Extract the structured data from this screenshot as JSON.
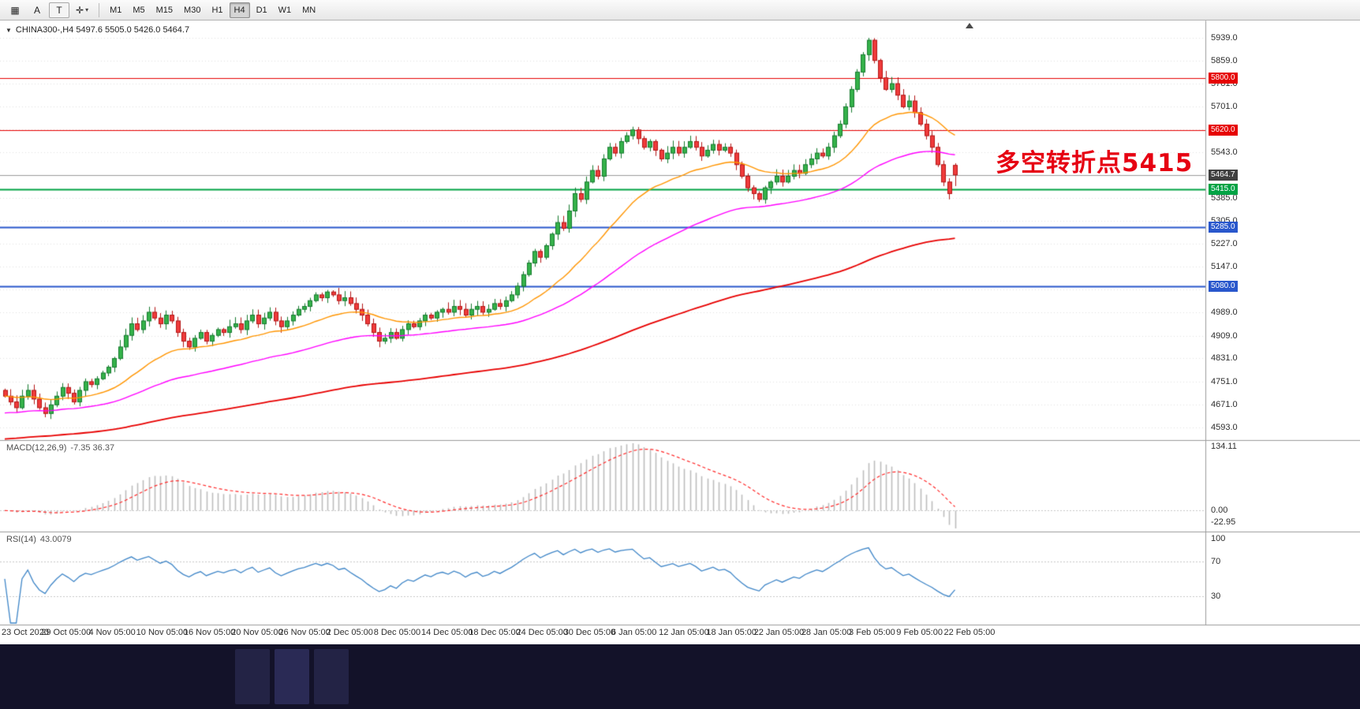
{
  "toolbar": {
    "buttons": [
      {
        "name": "chart-grid",
        "glyph": "▦"
      },
      {
        "name": "cursor",
        "glyph": "A"
      },
      {
        "name": "text",
        "glyph": "T"
      },
      {
        "name": "crosshair",
        "glyph": "✛"
      }
    ],
    "timeframes": [
      {
        "label": "M1",
        "active": false
      },
      {
        "label": "M5",
        "active": false
      },
      {
        "label": "M15",
        "active": false
      },
      {
        "label": "M30",
        "active": false
      },
      {
        "label": "H1",
        "active": false
      },
      {
        "label": "H4",
        "active": true
      },
      {
        "label": "D1",
        "active": false
      },
      {
        "label": "W1",
        "active": false
      },
      {
        "label": "MN",
        "active": false
      }
    ]
  },
  "icons": {
    "symbol_marker": "▼",
    "dropdown_caret": "▾"
  },
  "chart": {
    "header": "CHINA300-,H4 5497.6 5505.0 5426.0 5464.7",
    "symbol": "CHINA300-",
    "period": "H4",
    "ohlc": {
      "open": 5497.6,
      "high": 5505.0,
      "low": 5426.0,
      "close": 5464.7
    },
    "annotation": {
      "text": "多空转折点5415",
      "color": "#e60012"
    },
    "current_price": {
      "value": 5464.7,
      "label": "5464.7",
      "box_color": "#3f3f3f"
    },
    "levels": [
      {
        "value": 5800.0,
        "label": "5800.0",
        "color": "#e60000",
        "width": 1.2
      },
      {
        "value": 5620.0,
        "label": "5620.0",
        "color": "#e60000",
        "width": 1.2
      },
      {
        "value": 5415.0,
        "label": "5415.0",
        "color": "#00a344",
        "width": 2
      },
      {
        "value": 5285.0,
        "label": "5285.0",
        "color": "#2957cc",
        "width": 1.8
      },
      {
        "value": 5080.0,
        "label": "5080.0",
        "color": "#2957cc",
        "width": 1.8
      }
    ],
    "y_ticks_visible": [
      {
        "v": 5939,
        "label": "5939.0"
      },
      {
        "v": 5859,
        "label": "5859.0"
      },
      {
        "v": 5781,
        "label": "5781.0"
      },
      {
        "v": 5701,
        "label": "5701.0"
      },
      {
        "v": 5543,
        "label": "5543.0"
      },
      {
        "v": 5385,
        "label": "5385.0"
      },
      {
        "v": 5305,
        "label": "5305.0"
      },
      {
        "v": 5227,
        "label": "5227.0"
      },
      {
        "v": 5147,
        "label": "5147.0"
      },
      {
        "v": 4989,
        "label": "4989.0"
      },
      {
        "v": 4909,
        "label": "4909.0"
      },
      {
        "v": 4831,
        "label": "4831.0"
      },
      {
        "v": 4751,
        "label": "4751.0"
      },
      {
        "v": 4671,
        "label": "4671.0"
      },
      {
        "v": 4593,
        "label": "4593.0"
      }
    ]
  },
  "macd": {
    "title": "MACD(12,26,9)",
    "values": "-7.35 36.37",
    "axis": [
      {
        "v": 134.11,
        "label": "134.11"
      },
      {
        "v": 0,
        "label": "0.00"
      },
      {
        "v": -22.95,
        "label": "-22.95"
      }
    ]
  },
  "rsi": {
    "title": "RSI(14)",
    "value": "43.0079",
    "levels": [
      70,
      30
    ],
    "axis": [
      {
        "v": 100,
        "label": "100"
      },
      {
        "v": 70,
        "label": "70"
      },
      {
        "v": 30,
        "label": "30"
      }
    ]
  },
  "colors": {
    "up_fill": "#35b24a",
    "up_border": "#157a2e",
    "down_fill": "#ef3b3b",
    "down_border": "#b31515",
    "rsi_line": "#3f86c8",
    "macd_bar": "#bdbdbd",
    "macd_signal": "#ff2a2a",
    "grid": "#e2e2e2"
  },
  "chart_data": {
    "type": "candlestick",
    "title": "CHINA300-,H4",
    "symbol": "CHINA300-",
    "period": "H4",
    "y_range": [
      4593,
      5939
    ],
    "y_ticks": [
      5939,
      5859,
      5781,
      5701,
      5621,
      5543,
      5463,
      5385,
      5305,
      5227,
      5147,
      5069,
      4989,
      4909,
      4831,
      4751,
      4671,
      4593
    ],
    "x_labels": [
      "23 Oct 2020",
      "29 Oct 05:00",
      "4 Nov 05:00",
      "10 Nov 05:00",
      "16 Nov 05:00",
      "20 Nov 05:00",
      "26 Nov 05:00",
      "2 Dec 05:00",
      "8 Dec 05:00",
      "14 Dec 05:00",
      "18 Dec 05:00",
      "24 Dec 05:00",
      "30 Dec 05:00",
      "6 Jan 05:00",
      "12 Jan 05:00",
      "18 Jan 05:00",
      "22 Jan 05:00",
      "28 Jan 05:00",
      "3 Feb 05:00",
      "9 Feb 05:00",
      "22 Feb 05:00"
    ],
    "closes": [
      4700,
      4680,
      4660,
      4700,
      4720,
      4690,
      4660,
      4640,
      4670,
      4700,
      4730,
      4710,
      4680,
      4720,
      4750,
      4740,
      4760,
      4780,
      4800,
      4830,
      4870,
      4910,
      4950,
      4930,
      4960,
      4990,
      4970,
      4950,
      4980,
      4960,
      4920,
      4890,
      4870,
      4900,
      4920,
      4890,
      4910,
      4930,
      4920,
      4940,
      4950,
      4930,
      4960,
      4980,
      4950,
      4970,
      4990,
      4960,
      4940,
      4960,
      4980,
      5000,
      5010,
      5030,
      5050,
      5040,
      5060,
      5050,
      5030,
      5040,
      5020,
      5000,
      4980,
      4950,
      4920,
      4890,
      4900,
      4920,
      4900,
      4930,
      4950,
      4940,
      4960,
      4980,
      4970,
      4990,
      5000,
      4990,
      5010,
      5000,
      4980,
      5000,
      5010,
      4990,
      5000,
      5020,
      5010,
      5030,
      5050,
      5080,
      5120,
      5160,
      5200,
      5180,
      5220,
      5260,
      5300,
      5280,
      5340,
      5400,
      5380,
      5440,
      5480,
      5460,
      5520,
      5560,
      5540,
      5580,
      5600,
      5620,
      5590,
      5560,
      5580,
      5550,
      5520,
      5540,
      5560,
      5540,
      5560,
      5580,
      5560,
      5530,
      5550,
      5570,
      5550,
      5560,
      5540,
      5500,
      5460,
      5420,
      5400,
      5380,
      5420,
      5440,
      5460,
      5440,
      5460,
      5480,
      5470,
      5500,
      5520,
      5540,
      5530,
      5560,
      5600,
      5640,
      5700,
      5760,
      5820,
      5880,
      5930,
      5860,
      5800,
      5760,
      5780,
      5740,
      5700,
      5720,
      5680,
      5640,
      5600,
      5560,
      5500,
      5440,
      5400,
      5464.7
    ],
    "last_candle": {
      "open": 5497.6,
      "high": 5505.0,
      "low": 5426.0,
      "close": 5464.7
    },
    "horizontal_levels": [
      5800.0,
      5620.0,
      5415.0,
      5285.0,
      5080.0
    ],
    "current_price": 5464.7,
    "moving_averages": [
      {
        "name": "fast-ma",
        "color": "#ff9500"
      },
      {
        "name": "mid-ma",
        "color": "#ff00ff"
      },
      {
        "name": "slow-ma",
        "color": "#e80000"
      }
    ],
    "indicators": [
      {
        "name": "MACD",
        "params": "12,26,9",
        "main_value": -7.35,
        "signal_value": 36.37,
        "axis": [
          134.11,
          0.0,
          -22.95
        ]
      },
      {
        "name": "RSI",
        "params": "14",
        "value": 43.0079,
        "axis": [
          100,
          70,
          30
        ],
        "levels": [
          70,
          30
        ]
      }
    ],
    "annotation": "多空转折点5415"
  }
}
